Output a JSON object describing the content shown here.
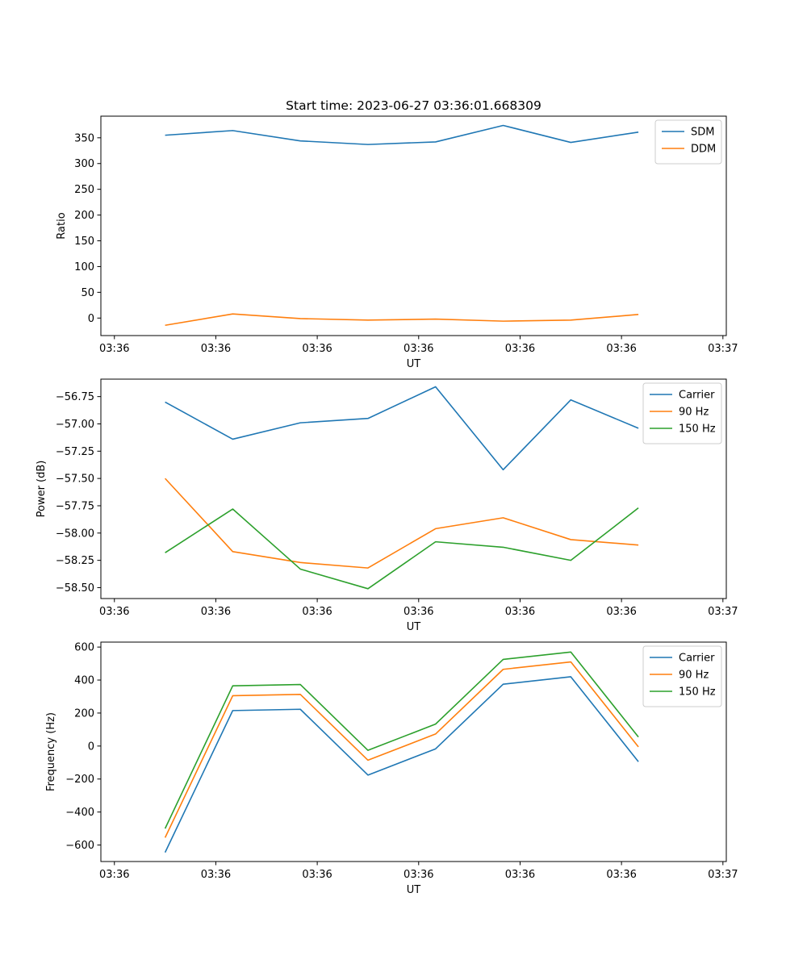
{
  "figure": {
    "title": "Start time: 2023-06-27 03:36:01.668309"
  },
  "colors": {
    "blue": "#1f77b4",
    "orange": "#ff7f0e",
    "green": "#2ca02c"
  },
  "chart_data": [
    {
      "type": "line",
      "title": "Start time: 2023-06-27 03:36:01.668309",
      "xlabel": "UT",
      "ylabel": "Ratio",
      "x": [
        1,
        2,
        3,
        4,
        5,
        6,
        7,
        8
      ],
      "xticks": [
        {
          "x": 0.25,
          "label": "03:36"
        },
        {
          "x": 1.75,
          "label": "03:36"
        },
        {
          "x": 3.25,
          "label": "03:36"
        },
        {
          "x": 4.75,
          "label": "03:36"
        },
        {
          "x": 6.25,
          "label": "03:36"
        },
        {
          "x": 7.75,
          "label": "03:36"
        },
        {
          "x": 9.25,
          "label": "03:37"
        }
      ],
      "xlim": [
        0.05,
        9.3
      ],
      "ylim": [
        -34,
        392
      ],
      "yticks": [
        0,
        50,
        100,
        150,
        200,
        250,
        300,
        350
      ],
      "legend": "upper-right",
      "series": [
        {
          "name": "SDM",
          "color": "#1f77b4",
          "values": [
            355,
            364,
            344,
            337,
            342,
            374,
            341,
            361
          ]
        },
        {
          "name": "DDM",
          "color": "#ff7f0e",
          "values": [
            -14,
            8,
            -1,
            -4,
            -2,
            -6,
            -4,
            7
          ]
        }
      ]
    },
    {
      "type": "line",
      "xlabel": "UT",
      "ylabel": "Power (dB)",
      "x": [
        1,
        2,
        3,
        4,
        5,
        6,
        7,
        8
      ],
      "xticks": [
        {
          "x": 0.25,
          "label": "03:36"
        },
        {
          "x": 1.75,
          "label": "03:36"
        },
        {
          "x": 3.25,
          "label": "03:36"
        },
        {
          "x": 4.75,
          "label": "03:36"
        },
        {
          "x": 6.25,
          "label": "03:36"
        },
        {
          "x": 7.75,
          "label": "03:36"
        },
        {
          "x": 9.25,
          "label": "03:37"
        }
      ],
      "xlim": [
        0.05,
        9.3
      ],
      "ylim": [
        -58.6,
        -56.59
      ],
      "yticks": [
        -58.5,
        -58.25,
        -58.0,
        -57.75,
        -57.5,
        -57.25,
        -57.0,
        -56.75
      ],
      "ytick_labels": [
        "−58.50",
        "−58.25",
        "−58.00",
        "−57.75",
        "−57.50",
        "−57.25",
        "−57.00",
        "−56.75"
      ],
      "legend": "upper-right",
      "series": [
        {
          "name": "Carrier",
          "color": "#1f77b4",
          "values": [
            -56.8,
            -57.14,
            -56.99,
            -56.95,
            -56.66,
            -57.42,
            -56.78,
            -57.04
          ]
        },
        {
          "name": "90 Hz",
          "color": "#ff7f0e",
          "values": [
            -57.5,
            -58.17,
            -58.27,
            -58.32,
            -57.96,
            -57.86,
            -58.06,
            -58.11
          ]
        },
        {
          "name": "150 Hz",
          "color": "#2ca02c",
          "values": [
            -58.18,
            -57.78,
            -58.33,
            -58.51,
            -58.08,
            -58.13,
            -58.25,
            -57.77
          ]
        }
      ]
    },
    {
      "type": "line",
      "xlabel": "UT",
      "ylabel": "Frequency (Hz)",
      "x": [
        1,
        2,
        3,
        4,
        5,
        6,
        7,
        8
      ],
      "xticks": [
        {
          "x": 0.25,
          "label": "03:36"
        },
        {
          "x": 1.75,
          "label": "03:36"
        },
        {
          "x": 3.25,
          "label": "03:36"
        },
        {
          "x": 4.75,
          "label": "03:36"
        },
        {
          "x": 6.25,
          "label": "03:36"
        },
        {
          "x": 7.75,
          "label": "03:36"
        },
        {
          "x": 9.25,
          "label": "03:37"
        }
      ],
      "xlim": [
        0.05,
        9.3
      ],
      "ylim": [
        -700,
        630
      ],
      "yticks": [
        -600,
        -400,
        -200,
        0,
        200,
        400,
        600
      ],
      "ytick_labels": [
        "−600",
        "−400",
        "−200",
        "0",
        "200",
        "400",
        "600"
      ],
      "legend": "upper-right",
      "series": [
        {
          "name": "Carrier",
          "color": "#1f77b4",
          "values": [
            -645,
            215,
            223,
            -176,
            -17,
            375,
            420,
            -95
          ]
        },
        {
          "name": "90 Hz",
          "color": "#ff7f0e",
          "values": [
            -555,
            305,
            313,
            -86,
            73,
            465,
            510,
            -5
          ]
        },
        {
          "name": "150 Hz",
          "color": "#2ca02c",
          "values": [
            -500,
            365,
            373,
            -26,
            133,
            525,
            570,
            55
          ]
        }
      ]
    }
  ]
}
